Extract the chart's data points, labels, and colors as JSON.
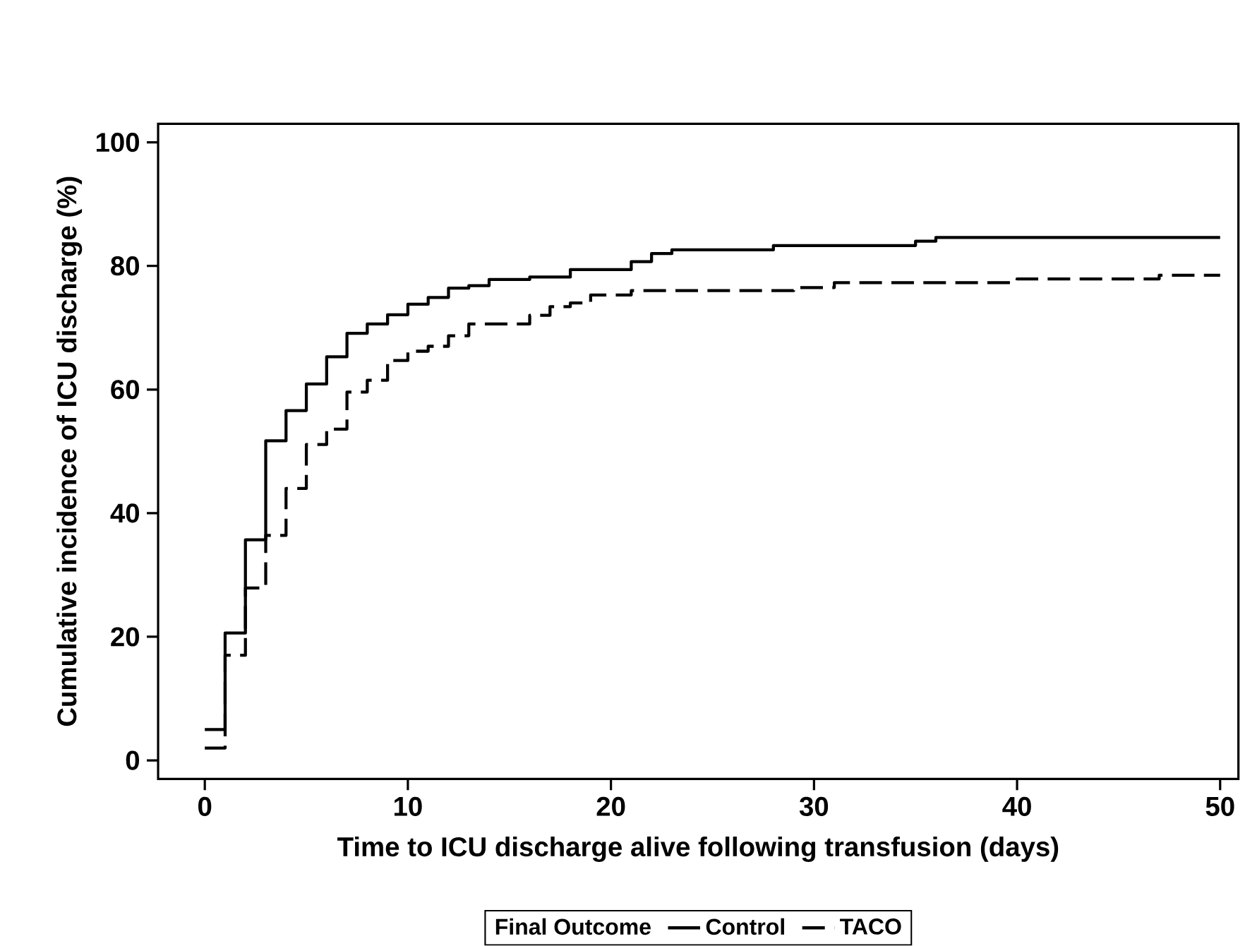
{
  "chart_data": {
    "type": "step",
    "xlabel": "Time to ICU discharge alive following transfusion (days)",
    "ylabel": "Cumulative incidence of ICU discharge (%)",
    "legend_title": "Final Outcome",
    "xlim": [
      -2.3,
      50.9
    ],
    "ylim": [
      -3,
      103
    ],
    "xticks": [
      0,
      10,
      20,
      30,
      40,
      50
    ],
    "yticks": [
      0,
      20,
      40,
      60,
      80,
      100
    ],
    "grid": false,
    "legend": "bottom",
    "marker": "none",
    "series": [
      {
        "name": "Control",
        "color": "#000000",
        "line_style": "solid",
        "x": [
          0,
          1,
          2,
          3,
          4,
          5,
          6,
          7,
          8,
          9,
          10,
          11,
          12,
          13,
          14,
          16,
          18,
          21,
          22,
          23,
          28,
          35,
          36,
          50
        ],
        "values": [
          5,
          20.6,
          35.7,
          51.7,
          56.6,
          60.9,
          65.3,
          69.1,
          70.6,
          72.1,
          73.8,
          74.9,
          76.4,
          76.8,
          77.8,
          78.2,
          79.4,
          80.7,
          82.0,
          82.6,
          83.3,
          84.0,
          84.6,
          84.6
        ]
      },
      {
        "name": "TACO",
        "color": "#000000",
        "line_style": "dashed",
        "x": [
          0,
          1,
          2,
          3,
          4,
          5,
          6,
          7,
          8,
          9,
          10,
          11,
          12,
          13,
          16,
          17,
          18,
          19,
          21,
          29,
          31,
          40,
          47,
          50
        ],
        "values": [
          2,
          17.0,
          27.9,
          36.4,
          44.0,
          51.1,
          53.6,
          59.6,
          61.5,
          64.7,
          66.2,
          67.0,
          68.7,
          70.6,
          72.0,
          73.4,
          74.0,
          75.3,
          76.0,
          76.5,
          77.3,
          77.9,
          78.5,
          78.5
        ]
      }
    ]
  }
}
